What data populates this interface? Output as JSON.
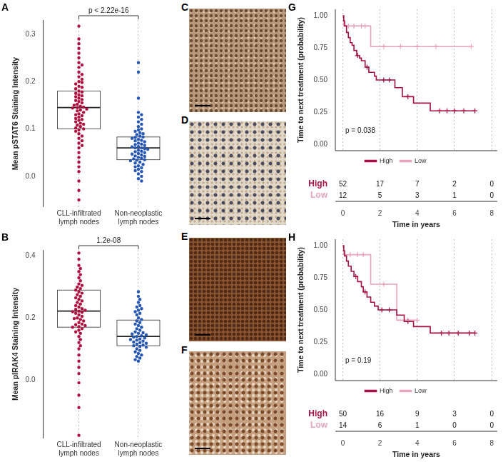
{
  "chart_data": [
    {
      "panel": "A",
      "type": "beeswarm",
      "y_label": "Mean pSTAT6 Staining Intensity",
      "categories": [
        "CLL-infiltrated lymph nodes",
        "Non-neoplastic lymph nodes"
      ],
      "colors": [
        "#b0103f",
        "#2657b4"
      ],
      "values": [
        [
          0.317,
          0.29,
          0.28,
          0.27,
          0.26,
          0.25,
          0.24,
          0.235,
          0.23,
          0.22,
          0.215,
          0.21,
          0.205,
          0.2,
          0.198,
          0.195,
          0.19,
          0.188,
          0.185,
          0.18,
          0.178,
          0.175,
          0.172,
          0.17,
          0.168,
          0.165,
          0.162,
          0.16,
          0.158,
          0.155,
          0.152,
          0.15,
          0.148,
          0.146,
          0.145,
          0.144,
          0.142,
          0.14,
          0.138,
          0.135,
          0.132,
          0.13,
          0.128,
          0.125,
          0.122,
          0.12,
          0.118,
          0.115,
          0.112,
          0.11,
          0.108,
          0.105,
          0.102,
          0.1,
          0.098,
          0.095,
          0.09,
          0.085,
          0.08,
          0.075,
          0.07,
          0.065,
          0.06,
          0.05,
          0.04,
          0.03,
          0.02,
          0.01,
          -0.01,
          -0.03,
          -0.05
        ],
        [
          0.24,
          0.22,
          0.165,
          0.135,
          0.13,
          0.125,
          0.12,
          0.115,
          0.11,
          0.105,
          0.1,
          0.098,
          0.095,
          0.092,
          0.09,
          0.088,
          0.085,
          0.083,
          0.082,
          0.08,
          0.078,
          0.076,
          0.075,
          0.073,
          0.07,
          0.068,
          0.067,
          0.065,
          0.063,
          0.062,
          0.06,
          0.06,
          0.058,
          0.057,
          0.055,
          0.053,
          0.052,
          0.05,
          0.048,
          0.047,
          0.045,
          0.043,
          0.042,
          0.04,
          0.038,
          0.037,
          0.035,
          0.034,
          0.033,
          0.03,
          0.028,
          0.025,
          0.022,
          0.02,
          0.018,
          0.015,
          0.012,
          0.01,
          0.005,
          0.0,
          -0.005,
          -0.01
        ]
      ],
      "box": [
        {
          "q1": 0.1,
          "median": 0.145,
          "q3": 0.18
        },
        {
          "q1": 0.035,
          "median": 0.06,
          "q3": 0.083
        }
      ],
      "annotation": "p < 2.22e-16",
      "ylim": [
        -0.065,
        0.33
      ],
      "yticks": [
        {
          "value": 0,
          "label": "0.0"
        },
        0.1,
        0.2,
        0.3
      ],
      "grid": true
    },
    {
      "panel": "B",
      "type": "beeswarm",
      "y_label": "Mean pIRAK4 Staining Intensity",
      "categories": [
        "CLL-infiltrated lymph nodes",
        "Non-neoplastic lymph nodes"
      ],
      "colors": [
        "#b0103f",
        "#2657b4"
      ],
      "values": [
        [
          0.41,
          0.39,
          0.37,
          0.36,
          0.35,
          0.34,
          0.33,
          0.32,
          0.31,
          0.305,
          0.3,
          0.295,
          0.29,
          0.285,
          0.28,
          0.275,
          0.27,
          0.265,
          0.26,
          0.255,
          0.25,
          0.245,
          0.24,
          0.235,
          0.23,
          0.228,
          0.225,
          0.222,
          0.22,
          0.218,
          0.215,
          0.21,
          0.205,
          0.2,
          0.198,
          0.195,
          0.19,
          0.185,
          0.18,
          0.178,
          0.175,
          0.172,
          0.17,
          0.165,
          0.16,
          0.155,
          0.15,
          0.14,
          0.13,
          0.12,
          0.11,
          0.1,
          0.08,
          0.06,
          0.04,
          0.02,
          -0.01,
          -0.05,
          -0.09,
          -0.18
        ],
        [
          0.285,
          0.27,
          0.26,
          0.25,
          0.24,
          0.235,
          0.23,
          0.225,
          0.22,
          0.215,
          0.21,
          0.2,
          0.195,
          0.19,
          0.185,
          0.18,
          0.175,
          0.17,
          0.165,
          0.16,
          0.155,
          0.152,
          0.15,
          0.148,
          0.145,
          0.142,
          0.14,
          0.138,
          0.135,
          0.132,
          0.13,
          0.128,
          0.125,
          0.122,
          0.12,
          0.118,
          0.115,
          0.112,
          0.11,
          0.108,
          0.105,
          0.1,
          0.095,
          0.09,
          0.085,
          0.08,
          0.075,
          0.07,
          0.065,
          0.06
        ]
      ],
      "box": [
        {
          "q1": 0.17,
          "median": 0.222,
          "q3": 0.29
        },
        {
          "q1": 0.11,
          "median": 0.14,
          "q3": 0.193
        }
      ],
      "annotation": "1.2e-08",
      "ylim": [
        -0.19,
        0.42
      ],
      "yticks": [
        {
          "value": 0,
          "label": "0.0"
        },
        0.2,
        0.4
      ],
      "grid": true
    },
    {
      "panel": "G",
      "type": "survival",
      "y_label": "Time to next treatment (probability)",
      "x_label": "Time in years",
      "annotation": "p = 0.038",
      "series": [
        {
          "name": "High",
          "color": "#a50f45",
          "x": [
            0,
            0.05,
            0.1,
            0.2,
            0.3,
            0.4,
            0.5,
            0.6,
            0.75,
            0.9,
            1.0,
            1.2,
            1.4,
            1.7,
            1.8,
            2.8,
            3.2,
            3.8,
            4.7,
            7.1
          ],
          "values": [
            1,
            0.96,
            0.92,
            0.87,
            0.83,
            0.79,
            0.77,
            0.73,
            0.69,
            0.67,
            0.65,
            0.6,
            0.56,
            0.53,
            0.5,
            0.44,
            0.37,
            0.32,
            0.26,
            0.26
          ],
          "censored_x": [
            0.8,
            1.3,
            2.2,
            2.5,
            3.5,
            5.2,
            5.6,
            6.0,
            6.5,
            7.1
          ],
          "censored_values": [
            0.69,
            0.6,
            0.5,
            0.5,
            0.37,
            0.26,
            0.26,
            0.26,
            0.26,
            0.26
          ]
        },
        {
          "name": "Low",
          "color": "#e8a3bd",
          "x": [
            0,
            0.05,
            1.5,
            6.9
          ],
          "values": [
            1,
            0.92,
            0.76,
            0.76
          ],
          "censored_x": [
            0.3,
            0.6,
            1.0,
            1.2,
            2.2,
            3.1,
            4.0,
            5.0,
            6.9
          ],
          "censored_values": [
            0.92,
            0.92,
            0.92,
            0.92,
            0.76,
            0.76,
            0.76,
            0.76,
            0.76
          ]
        }
      ],
      "risk_table": {
        "rows": [
          {
            "name": "High",
            "color": "#a50f45",
            "values": [
              52,
              17,
              7,
              2,
              0
            ]
          },
          {
            "name": "Low",
            "color": "#e8a3bd",
            "values": [
              12,
              5,
              3,
              1,
              0
            ]
          }
        ]
      },
      "xlim": [
        -0.4,
        8.3
      ],
      "xticks": [
        0,
        2,
        4,
        6,
        8
      ],
      "ylim": [
        -0.05,
        1.05
      ],
      "yticks": [
        {
          "value": 0,
          "label": "0.00"
        },
        0.25,
        {
          "value": 0.5,
          "label": "0.50"
        },
        0.75,
        {
          "value": 1,
          "label": "1.00"
        }
      ],
      "legend": "bottom",
      "grid": true
    },
    {
      "panel": "H",
      "type": "survival",
      "y_label": "Time to next treatment (probability)",
      "x_label": "Time in years",
      "annotation": "p = 0.19",
      "series": [
        {
          "name": "High",
          "color": "#a50f45",
          "x": [
            0,
            0.05,
            0.1,
            0.2,
            0.3,
            0.45,
            0.6,
            0.8,
            1.0,
            1.1,
            1.3,
            1.5,
            1.7,
            1.9,
            2.9,
            3.3,
            3.8,
            4.7,
            7.1
          ],
          "values": [
            1,
            0.96,
            0.92,
            0.88,
            0.84,
            0.8,
            0.76,
            0.72,
            0.68,
            0.64,
            0.6,
            0.56,
            0.53,
            0.5,
            0.46,
            0.41,
            0.37,
            0.32,
            0.32
          ],
          "censored_x": [
            0.7,
            1.2,
            2.1,
            2.5,
            3.5,
            5.3,
            5.7,
            6.2,
            6.8,
            7.1
          ],
          "censored_values": [
            0.76,
            0.64,
            0.5,
            0.5,
            0.41,
            0.32,
            0.32,
            0.32,
            0.32,
            0.32
          ]
        },
        {
          "name": "Low",
          "color": "#e8a3bd",
          "x": [
            0,
            0.05,
            1.5,
            2.9,
            4.0
          ],
          "values": [
            1,
            0.93,
            0.7,
            0.42,
            0.42
          ],
          "censored_x": [
            0.4,
            0.8,
            1.1,
            2.2,
            3.5,
            4.0
          ],
          "censored_values": [
            0.93,
            0.93,
            0.93,
            0.7,
            0.42,
            0.42
          ]
        }
      ],
      "risk_table": {
        "rows": [
          {
            "name": "High",
            "color": "#a50f45",
            "values": [
              50,
              16,
              9,
              3,
              0
            ]
          },
          {
            "name": "Low",
            "color": "#e8a3bd",
            "values": [
              14,
              6,
              1,
              0,
              0
            ]
          }
        ]
      },
      "xlim": [
        -0.4,
        8.3
      ],
      "xticks": [
        0,
        2,
        4,
        6,
        8
      ],
      "ylim": [
        -0.05,
        1.05
      ],
      "yticks": [
        {
          "value": 0,
          "label": "0.00"
        },
        0.25,
        {
          "value": 0.5,
          "label": "0.50"
        },
        0.75,
        {
          "value": 1,
          "label": "1.00"
        }
      ],
      "legend": "bottom",
      "grid": true
    }
  ],
  "image_panels": [
    "C",
    "D",
    "E",
    "F"
  ]
}
